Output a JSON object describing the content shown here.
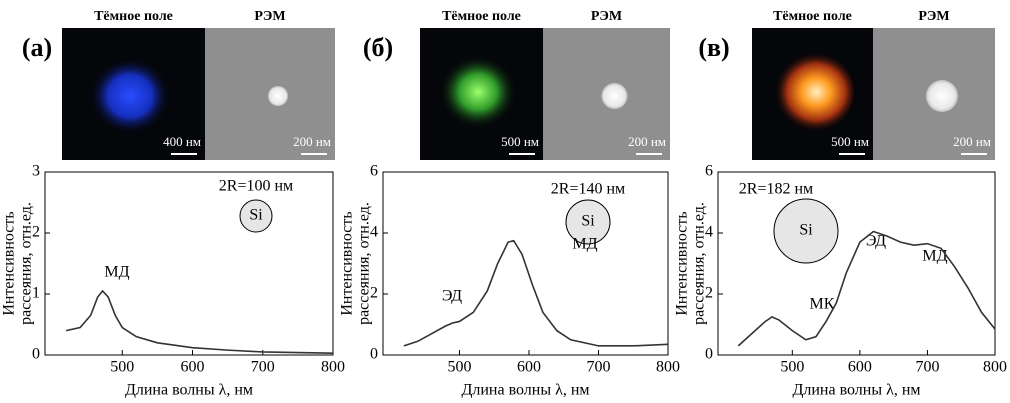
{
  "chart_data": [
    {
      "type": "line",
      "panel_label": "(а)",
      "image_labels": {
        "dark_field": "Тёмное поле",
        "sem": "РЭМ",
        "dark_scale": "400 нм",
        "sem_scale": "200 нм"
      },
      "size_label": "2R=100 нм",
      "particle": "Si",
      "annotations": [
        "МД"
      ],
      "xlabel": "Длина волны λ, нм",
      "ylabel": [
        "Интенсивность",
        "рассеяния, отн.ед."
      ],
      "x": [
        420,
        440,
        455,
        465,
        472,
        480,
        490,
        500,
        520,
        550,
        600,
        650,
        700,
        750,
        800
      ],
      "series": [
        {
          "color": "#333333",
          "values": [
            0.4,
            0.45,
            0.65,
            0.95,
            1.05,
            0.95,
            0.65,
            0.45,
            0.3,
            0.2,
            0.12,
            0.08,
            0.05,
            0.04,
            0.03
          ]
        }
      ],
      "xlim": [
        390,
        800
      ],
      "ylim": [
        0,
        3
      ],
      "xticks": [
        500,
        600,
        700,
        800
      ],
      "yticks": [
        0,
        1,
        2,
        3
      ]
    },
    {
      "type": "line",
      "panel_label": "(б)",
      "image_labels": {
        "dark_field": "Тёмное поле",
        "sem": "РЭМ",
        "dark_scale": "500 нм",
        "sem_scale": "200 нм"
      },
      "size_label": "2R=140 нм",
      "particle": "Si",
      "annotations": [
        "ЭД",
        "МД"
      ],
      "xlabel": "Длина волны λ, нм",
      "ylabel": [
        "Интенсивность",
        "рассеяния, отн.ед."
      ],
      "x": [
        420,
        440,
        460,
        480,
        490,
        500,
        520,
        540,
        555,
        570,
        578,
        590,
        605,
        620,
        640,
        660,
        700,
        750,
        800
      ],
      "series": [
        {
          "color": "#333333",
          "values": [
            0.3,
            0.45,
            0.7,
            0.95,
            1.05,
            1.1,
            1.4,
            2.1,
            3.0,
            3.7,
            3.75,
            3.3,
            2.3,
            1.4,
            0.8,
            0.5,
            0.3,
            0.3,
            0.35
          ]
        }
      ],
      "xlim": [
        390,
        800
      ],
      "ylim": [
        0,
        6
      ],
      "xticks": [
        500,
        600,
        700,
        800
      ],
      "yticks": [
        0,
        2,
        4,
        6
      ]
    },
    {
      "type": "line",
      "panel_label": "(в)",
      "image_labels": {
        "dark_field": "Тёмное поле",
        "sem": "РЭМ",
        "dark_scale": "500 нм",
        "sem_scale": "200 нм"
      },
      "size_label": "2R=182 нм",
      "particle": "Si",
      "annotations": [
        "МК",
        "ЭД",
        "МД"
      ],
      "xlabel": "Длина волны λ, нм",
      "ylabel": [
        "Интенсивность",
        "рассеяния, отн.ед."
      ],
      "x": [
        420,
        440,
        460,
        470,
        480,
        500,
        520,
        535,
        550,
        565,
        580,
        600,
        620,
        640,
        660,
        680,
        700,
        720,
        740,
        760,
        780,
        800
      ],
      "series": [
        {
          "color": "#333333",
          "values": [
            0.3,
            0.7,
            1.1,
            1.25,
            1.15,
            0.8,
            0.5,
            0.6,
            1.1,
            1.7,
            2.7,
            3.7,
            4.05,
            3.9,
            3.7,
            3.6,
            3.65,
            3.5,
            2.9,
            2.2,
            1.4,
            0.85
          ]
        }
      ],
      "xlim": [
        390,
        800
      ],
      "ylim": [
        0,
        6
      ],
      "xticks": [
        500,
        600,
        700,
        800
      ],
      "yticks": [
        0,
        2,
        4,
        6
      ]
    }
  ]
}
